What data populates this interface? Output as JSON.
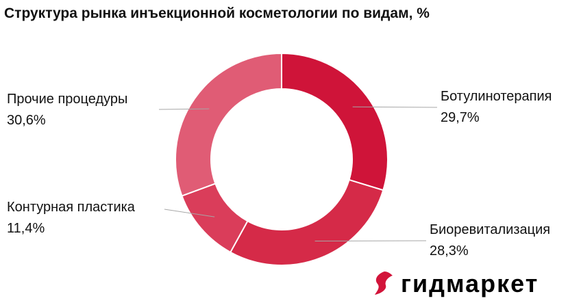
{
  "chart_data": {
    "type": "pie",
    "donut": true,
    "title": "Структура рынка инъекционной косметологии по видам, %",
    "categories": [
      "Ботулинотерапия",
      "Биоревитализация",
      "Контурная пластика",
      "Прочие процедуры"
    ],
    "values": [
      29.7,
      28.3,
      11.4,
      30.6
    ],
    "value_labels": [
      "29,7%",
      "28,3%",
      "11,4%",
      "30,6%"
    ],
    "colors": [
      "#cf1439",
      "#d52a48",
      "#da3d5a",
      "#e05c75"
    ],
    "legend": "none"
  },
  "brand": {
    "logo_text": "гидмаркет",
    "logo_color": "#d2143a"
  }
}
